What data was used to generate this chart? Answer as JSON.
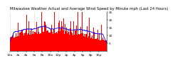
{
  "title": "Milwaukee Weather Actual and Average Wind Speed by Minute mph (Last 24 Hours)",
  "background_color": "#ffffff",
  "plot_bg_color": "#ffffff",
  "bar_color": "#ff0000",
  "line_color": "#0000ff",
  "grid_color": "#b0b0b0",
  "num_points": 1440,
  "y_max": 25,
  "y_min": 0,
  "y_ticks": [
    5,
    10,
    15,
    20,
    25
  ],
  "title_fontsize": 3.8,
  "tick_fontsize": 3.2,
  "seed": 42
}
